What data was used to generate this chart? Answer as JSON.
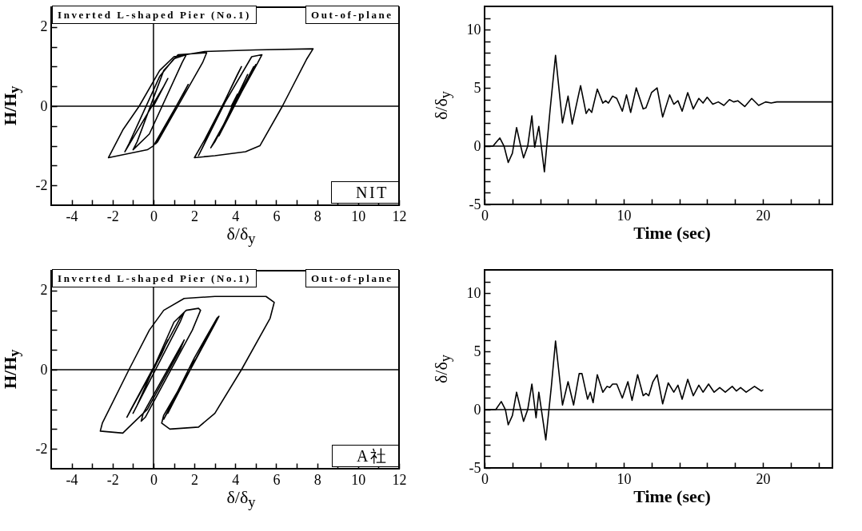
{
  "chart_data": [
    {
      "type": "line",
      "xlabel": "δ/δ$_{y}$",
      "ylabel": "H/H$_{y}$",
      "annotations": [
        "Inverted L-shaped Pier (No.1)",
        "Out-of-plane",
        "NIT"
      ],
      "xlim": [
        -5,
        12
      ],
      "xticks": [
        -4,
        {
          "value": -3,
          "label": null
        },
        -2,
        {
          "value": -1,
          "label": null
        },
        0,
        {
          "value": 1,
          "label": null
        },
        2,
        {
          "value": 3,
          "label": null
        },
        4,
        {
          "value": 5,
          "label": null
        },
        6,
        {
          "value": 7,
          "label": null
        },
        8,
        {
          "value": 9,
          "label": null
        },
        10,
        {
          "value": 11,
          "label": null
        },
        12
      ],
      "ylim": [
        -2.5,
        2.5
      ],
      "yticks": [
        -2,
        {
          "value": -1.5,
          "label": null
        },
        {
          "value": -1,
          "label": null
        },
        {
          "value": -0.5,
          "label": null
        },
        0,
        {
          "value": 0.5,
          "label": null
        },
        {
          "value": 1,
          "label": null
        },
        {
          "value": 1.5,
          "label": null
        },
        2
      ],
      "ref_lines": [
        {
          "axis": "y",
          "value": 0,
          "color": "#000000"
        },
        {
          "axis": "x",
          "value": 0,
          "color": "#000000"
        }
      ],
      "series": [
        {
          "color": "#000000",
          "x": [
            0,
            0.7,
            0.5,
            -1.4,
            -1.2,
            0.3,
            1.0,
            1.6,
            1.4,
            -0.2,
            -1.0,
            -0.8,
            0.5,
            1.2,
            2.6,
            2.4,
            0.2,
            0.1,
            1.7,
            1.5,
            0,
            -0.3,
            -2.2,
            -1.5,
            -0.7,
            0.3,
            1.0,
            2.5,
            5,
            7.8,
            7.5,
            6.3,
            5.2,
            4.5,
            3,
            2.0,
            2.5,
            3.5,
            4.3,
            4.1,
            2.2,
            3.5,
            4.8,
            5.3,
            5.1,
            2.8,
            3.0,
            4.9,
            3.0,
            5.0,
            3.2,
            4.6,
            3.3,
            4.6,
            3.5,
            4.1,
            3.8
          ],
          "values": [
            0,
            0.7,
            0.5,
            -1.15,
            -0.95,
            0.75,
            1.2,
            1.3,
            1.1,
            -0.7,
            -1.1,
            -0.9,
            0.9,
            1.3,
            1.35,
            1.1,
            -0.9,
            -0.95,
            0.55,
            0.35,
            -1.0,
            -1.1,
            -1.3,
            -0.6,
            0,
            0.9,
            1.25,
            1.38,
            1.42,
            1.45,
            1.2,
            0,
            -1.0,
            -1.15,
            -1.25,
            -1.3,
            -0.85,
            0.15,
            1.0,
            0.8,
            -1.25,
            0.1,
            1.25,
            1.3,
            1.1,
            -1.05,
            -0.9,
            1.0,
            -0.9,
            1.05,
            -0.75,
            0.8,
            -0.6,
            0.8,
            -0.4,
            0.3,
            0
          ]
        }
      ]
    },
    {
      "type": "line",
      "xlabel": "Time (sec)",
      "ylabel": "δ/δ$_{y}$",
      "xlim": [
        0,
        25
      ],
      "xticks": [
        0,
        {
          "value": 2,
          "label": null
        },
        {
          "value": 4,
          "label": null
        },
        {
          "value": 6,
          "label": null
        },
        {
          "value": 8,
          "label": null
        },
        10,
        {
          "value": 12,
          "label": null
        },
        {
          "value": 14,
          "label": null
        },
        {
          "value": 16,
          "label": null
        },
        {
          "value": 18,
          "label": null
        },
        20,
        {
          "value": 22,
          "label": null
        },
        {
          "value": 24,
          "label": null
        }
      ],
      "ylim": [
        -5,
        12
      ],
      "yticks": [
        -5,
        {
          "value": -4,
          "label": null
        },
        {
          "value": -3,
          "label": null
        },
        {
          "value": -2,
          "label": null
        },
        {
          "value": -1,
          "label": null
        },
        0,
        {
          "value": 1,
          "label": null
        },
        {
          "value": 2,
          "label": null
        },
        {
          "value": 3,
          "label": null
        },
        {
          "value": 4,
          "label": null
        },
        5,
        {
          "value": 6,
          "label": null
        },
        {
          "value": 7,
          "label": null
        },
        {
          "value": 8,
          "label": null
        },
        {
          "value": 9,
          "label": null
        },
        10,
        {
          "value": 11,
          "label": null
        }
      ],
      "ref_lines": [
        {
          "axis": "y",
          "value": 0,
          "color": "#000000"
        }
      ],
      "series": [
        {
          "color": "#000000",
          "x": [
            0,
            0.6,
            1.1,
            1.4,
            1.7,
            2.0,
            2.3,
            2.6,
            2.8,
            3.1,
            3.4,
            3.6,
            3.9,
            4.3,
            4.7,
            5.1,
            5.6,
            6.0,
            6.3,
            6.9,
            7.3,
            7.5,
            7.7,
            8.1,
            8.5,
            8.7,
            8.9,
            9.2,
            9.5,
            9.9,
            10.2,
            10.5,
            10.9,
            11.4,
            11.6,
            12.0,
            12.4,
            12.8,
            13.3,
            13.6,
            13.9,
            14.2,
            14.6,
            15.0,
            15.4,
            15.7,
            16.0,
            16.4,
            16.8,
            17.2,
            17.6,
            17.9,
            18.2,
            18.7,
            19.2,
            19.7,
            20.2,
            20.6,
            21.0,
            25
          ],
          "values": [
            0,
            0,
            0.7,
            0,
            -1.4,
            -0.6,
            1.6,
            0,
            -1.0,
            0,
            2.6,
            -0.1,
            1.7,
            -2.2,
            3,
            7.8,
            2.0,
            4.3,
            1.9,
            5.2,
            2.8,
            3.2,
            2.9,
            4.9,
            3.7,
            3.9,
            3.7,
            4.3,
            4.1,
            3.0,
            4.4,
            2.9,
            5.0,
            3.2,
            3.3,
            4.6,
            5.0,
            2.5,
            4.4,
            3.6,
            3.9,
            3.0,
            4.6,
            3.2,
            4.1,
            3.7,
            4.2,
            3.6,
            3.8,
            3.5,
            4.0,
            3.8,
            3.9,
            3.4,
            4.1,
            3.5,
            3.8,
            3.7,
            3.8,
            3.8
          ]
        }
      ]
    },
    {
      "type": "line",
      "xlabel": "δ/δ$_{y}$",
      "ylabel": "H/H$_{y}$",
      "annotations": [
        "Inverted L-shaped Pier (No.1)",
        "Out-of-plane",
        "A社"
      ],
      "xlim": [
        -5,
        12
      ],
      "xticks": [
        -4,
        {
          "value": -3,
          "label": null
        },
        -2,
        {
          "value": -1,
          "label": null
        },
        0,
        {
          "value": 1,
          "label": null
        },
        2,
        {
          "value": 3,
          "label": null
        },
        4,
        {
          "value": 5,
          "label": null
        },
        6,
        {
          "value": 7,
          "label": null
        },
        8,
        {
          "value": 9,
          "label": null
        },
        10,
        {
          "value": 11,
          "label": null
        },
        12
      ],
      "ylim": [
        -2.5,
        2.5
      ],
      "yticks": [
        -2,
        {
          "value": -1.5,
          "label": null
        },
        {
          "value": -1,
          "label": null
        },
        {
          "value": -0.5,
          "label": null
        },
        0,
        {
          "value": 0.5,
          "label": null
        },
        {
          "value": 1,
          "label": null
        },
        {
          "value": 1.5,
          "label": null
        },
        2
      ],
      "ref_lines": [
        {
          "axis": "y",
          "value": 0,
          "color": "#000000"
        },
        {
          "axis": "x",
          "value": 0,
          "color": "#000000"
        }
      ],
      "series": [
        {
          "color": "#000000",
          "x": [
            0,
            0.7,
            0.4,
            -1.3,
            -1.1,
            1.4,
            1.5,
            1.3,
            -1.0,
            -0.8,
            1.0,
            1.6,
            2.2,
            2.3,
            1.9,
            -0.4,
            -0.6,
            -0.5,
            1.5,
            1.3,
            -0.3,
            -1.5,
            -2.6,
            -2.5,
            -1.2,
            -0.2,
            0.5,
            1.5,
            3,
            5.5,
            5.9,
            5.7,
            4.3,
            3,
            2.2,
            0.8,
            0.4,
            0.5,
            1.8,
            3.1,
            3.2,
            3.0,
            0.5,
            2.0,
            3.1,
            0.7,
            2.7,
            1.0,
            2.5,
            1.3,
            2.1,
            1.7
          ],
          "values": [
            0,
            0.75,
            0.4,
            -1.2,
            -1.0,
            1.4,
            1.45,
            1.2,
            -1.1,
            -0.9,
            1.2,
            1.5,
            1.55,
            1.5,
            1.0,
            -1.2,
            -1.3,
            -1.1,
            0.75,
            0.5,
            -1.0,
            -1.6,
            -1.55,
            -1.35,
            0,
            1.0,
            1.5,
            1.8,
            1.85,
            1.85,
            1.7,
            1.3,
            0,
            -1.1,
            -1.45,
            -1.5,
            -1.35,
            -1.15,
            0,
            1.3,
            1.35,
            1.15,
            -1.25,
            0.3,
            1.3,
            -1.1,
            0.9,
            -0.8,
            0.7,
            -0.5,
            0.3,
            0
          ]
        }
      ]
    },
    {
      "type": "line",
      "xlabel": "Time (sec)",
      "ylabel": "δ/δ$_{y}$",
      "xlim": [
        0,
        25
      ],
      "xticks": [
        0,
        {
          "value": 2,
          "label": null
        },
        {
          "value": 4,
          "label": null
        },
        {
          "value": 6,
          "label": null
        },
        {
          "value": 8,
          "label": null
        },
        10,
        {
          "value": 12,
          "label": null
        },
        {
          "value": 14,
          "label": null
        },
        {
          "value": 16,
          "label": null
        },
        {
          "value": 18,
          "label": null
        },
        20,
        {
          "value": 22,
          "label": null
        },
        {
          "value": 24,
          "label": null
        }
      ],
      "ylim": [
        -5,
        12
      ],
      "yticks": [
        -5,
        {
          "value": -4,
          "label": null
        },
        {
          "value": -3,
          "label": null
        },
        {
          "value": -2,
          "label": null
        },
        {
          "value": -1,
          "label": null
        },
        0,
        {
          "value": 1,
          "label": null
        },
        {
          "value": 2,
          "label": null
        },
        {
          "value": 3,
          "label": null
        },
        {
          "value": 4,
          "label": null
        },
        5,
        {
          "value": 6,
          "label": null
        },
        {
          "value": 7,
          "label": null
        },
        {
          "value": 8,
          "label": null
        },
        {
          "value": 9,
          "label": null
        },
        10,
        {
          "value": 11,
          "label": null
        }
      ],
      "ref_lines": [
        {
          "axis": "y",
          "value": 0,
          "color": "#000000"
        }
      ],
      "series": [
        {
          "color": "#000000",
          "x": [
            0,
            0.8,
            1.2,
            1.5,
            1.7,
            2.0,
            2.3,
            2.6,
            2.8,
            3.1,
            3.4,
            3.7,
            3.9,
            4.4,
            4.8,
            5.1,
            5.6,
            6.0,
            6.4,
            6.8,
            7.0,
            7.4,
            7.6,
            7.8,
            8.1,
            8.5,
            8.8,
            9.0,
            9.2,
            9.5,
            9.9,
            10.3,
            10.6,
            11.0,
            11.4,
            11.6,
            11.8,
            12.1,
            12.4,
            12.8,
            13.2,
            13.6,
            13.9,
            14.2,
            14.6,
            15.0,
            15.4,
            15.7,
            16.1,
            16.5,
            16.9,
            17.3,
            17.8,
            18.1,
            18.4,
            18.8,
            19.4,
            19.9,
            20.0
          ],
          "values": [
            0,
            0,
            0.7,
            0,
            -1.3,
            -0.5,
            1.5,
            0,
            -1.0,
            0,
            2.2,
            -0.7,
            1.5,
            -2.6,
            2,
            5.9,
            0.4,
            2.4,
            0.4,
            3.1,
            3.1,
            0.9,
            1.5,
            0.6,
            3.0,
            1.5,
            2.0,
            1.9,
            2.2,
            2.2,
            1.0,
            2.4,
            0.8,
            3.0,
            1.2,
            1.4,
            1.2,
            2.4,
            3.0,
            0.5,
            2.3,
            1.5,
            2.1,
            0.9,
            2.6,
            1.2,
            2.1,
            1.5,
            2.2,
            1.5,
            1.9,
            1.5,
            2.0,
            1.6,
            1.9,
            1.5,
            2.0,
            1.6,
            1.7
          ]
        }
      ]
    }
  ]
}
